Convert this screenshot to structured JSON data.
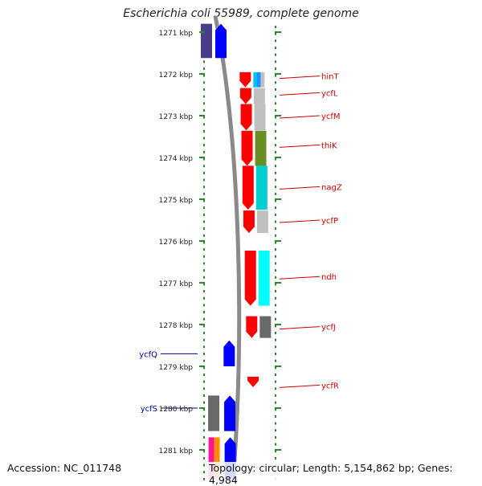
{
  "title": "Escherichia coli 55989, complete genome",
  "accession": "Accession: NC_011748",
  "summary": "Topology: circular; Length: 5,154,862 bp; Genes: 4,984",
  "ticks": [
    "1271 kbp",
    "1272 kbp",
    "1273 kbp",
    "1274 kbp",
    "1275 kbp",
    "1276 kbp",
    "1277 kbp",
    "1278 kbp",
    "1279 kbp",
    "1280 kbp",
    "1281 kbp"
  ],
  "colors": {
    "forward": "#0000ff",
    "reverse": "#ff0000",
    "backbone": "#8a8a8a",
    "ruler": "#2a8a2a",
    "label_right": "#cc0000",
    "label_left": "#0000aa"
  },
  "genes": [
    {
      "name": "hinT",
      "start_kbp": 1271.96,
      "end_kbp": 1272.32,
      "strand": "reverse",
      "track": "outer",
      "cog_colors": [
        "#00bfff",
        "#1e90ff",
        "#c0c0c0"
      ],
      "label_side": "right",
      "label_kbp": 1272.05
    },
    {
      "name": "ycfL",
      "start_kbp": 1272.34,
      "end_kbp": 1272.72,
      "strand": "reverse",
      "track": "outer",
      "cog_colors": [
        "#c0c0c0"
      ],
      "label_side": "right",
      "label_kbp": 1272.45
    },
    {
      "name": "ycfM",
      "start_kbp": 1272.72,
      "end_kbp": 1273.35,
      "strand": "reverse",
      "track": "outer",
      "cog_colors": [
        "#c0c0c0"
      ],
      "label_side": "right",
      "label_kbp": 1273.0
    },
    {
      "name": "thiK",
      "start_kbp": 1273.36,
      "end_kbp": 1274.2,
      "strand": "reverse",
      "track": "outer",
      "cog_colors": [
        "#6b8e23"
      ],
      "label_side": "right",
      "label_kbp": 1273.7
    },
    {
      "name": "nagZ",
      "start_kbp": 1274.2,
      "end_kbp": 1275.25,
      "strand": "reverse",
      "track": "outer",
      "cog_colors": [
        "#00ced1"
      ],
      "label_side": "right",
      "label_kbp": 1274.7
    },
    {
      "name": "ycfP",
      "start_kbp": 1275.27,
      "end_kbp": 1275.81,
      "strand": "reverse",
      "track": "outer",
      "cog_colors": [
        "#c0c0c0"
      ],
      "label_side": "right",
      "label_kbp": 1275.5
    },
    {
      "name": "ndh",
      "start_kbp": 1276.23,
      "end_kbp": 1277.55,
      "strand": "reverse",
      "track": "outer",
      "cog_colors": [
        "#00ffff"
      ],
      "label_side": "right",
      "label_kbp": 1276.85
    },
    {
      "name": "ycfJ",
      "start_kbp": 1277.8,
      "end_kbp": 1278.32,
      "strand": "reverse",
      "track": "outer",
      "cog_colors": [
        "#696969"
      ],
      "label_side": "right",
      "label_kbp": 1278.05
    },
    {
      "name": "ycfQ",
      "start_kbp": 1278.38,
      "end_kbp": 1279.0,
      "strand": "forward",
      "track": "inner",
      "cog_colors": [],
      "label_side": "left",
      "label_kbp": 1278.7
    },
    {
      "name": "ycfR",
      "start_kbp": 1279.25,
      "end_kbp": 1279.5,
      "strand": "reverse",
      "track": "outer",
      "cog_colors": [],
      "label_side": "right",
      "label_kbp": 1279.45
    },
    {
      "name": "ycfS",
      "start_kbp": 1279.7,
      "end_kbp": 1280.55,
      "strand": "forward",
      "track": "inner",
      "cog_colors": [
        "#696969"
      ],
      "label_side": "left",
      "label_kbp": 1280.0
    },
    {
      "name": "",
      "start_kbp": 1270.8,
      "end_kbp": 1271.62,
      "strand": "forward",
      "track": "inner",
      "cog_colors": [
        "#483d8b"
      ],
      "label_side": "none",
      "label_kbp": 1271.2
    },
    {
      "name": "",
      "start_kbp": 1280.7,
      "end_kbp": 1281.7,
      "strand": "forward",
      "track": "inner",
      "cog_colors": [
        "#ff1493",
        "#ff8c00"
      ],
      "label_side": "none",
      "label_kbp": 1281.2
    }
  ]
}
